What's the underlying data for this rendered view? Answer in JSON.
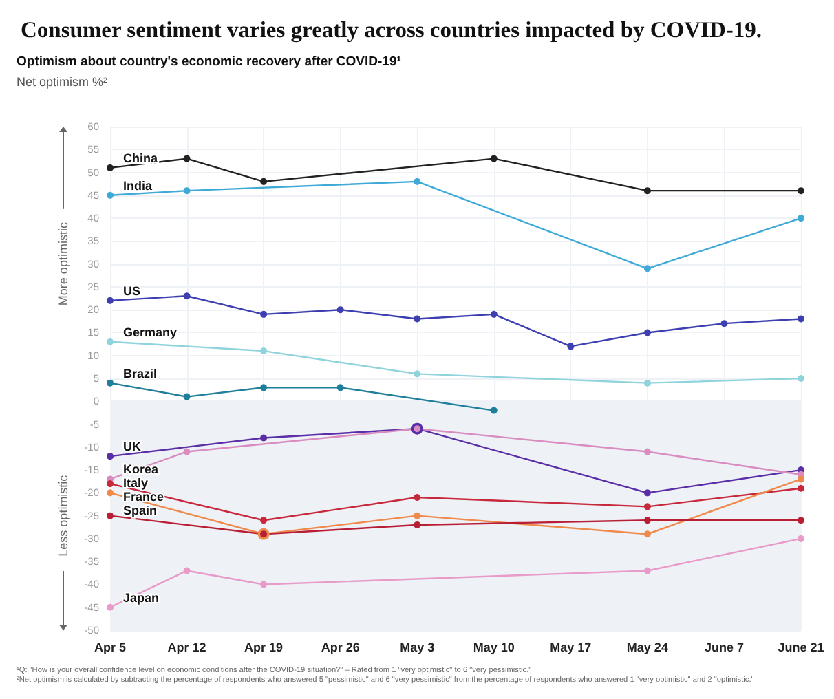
{
  "chart_data": {
    "type": "line",
    "title": "Consumer sentiment varies greatly across countries impacted by COVID-19.",
    "subtitle": "Optimism about country's economic recovery after COVID-19¹",
    "ylabel": "Net optimism %²",
    "categories": [
      "Apr 5",
      "Apr 12",
      "Apr 19",
      "Apr 26",
      "May 3",
      "May 10",
      "May 17",
      "May 24",
      "June 7",
      "June 21"
    ],
    "series": [
      {
        "name": "China",
        "color": "#222222",
        "values": [
          51,
          53,
          48,
          null,
          null,
          53,
          null,
          46,
          null,
          46
        ]
      },
      {
        "name": "India",
        "color": "#3fa9d8",
        "values": [
          45,
          46,
          null,
          null,
          48,
          null,
          null,
          29,
          null,
          40
        ]
      },
      {
        "name": "US",
        "color": "#3d3fb0",
        "values": [
          22,
          23,
          19,
          20,
          18,
          19,
          12,
          15,
          17,
          18
        ]
      },
      {
        "name": "Germany",
        "color": "#8fd3dc",
        "values": [
          13,
          null,
          11,
          null,
          6,
          null,
          null,
          4,
          null,
          5
        ]
      },
      {
        "name": "Brazil",
        "color": "#1f7f9a",
        "values": [
          4,
          1,
          3,
          3,
          null,
          -2,
          null,
          null,
          null,
          null
        ]
      },
      {
        "name": "UK",
        "color": "#5a2ea6",
        "values": [
          -12,
          null,
          -8,
          null,
          -6,
          null,
          null,
          -20,
          null,
          -15
        ]
      },
      {
        "name": "Korea",
        "color": "#d98cc0",
        "values": [
          -17,
          -11,
          null,
          null,
          -6,
          null,
          null,
          -11,
          null,
          -16
        ]
      },
      {
        "name": "Italy",
        "color": "#c8283c",
        "values": [
          -18,
          null,
          -26,
          null,
          -21,
          null,
          null,
          -23,
          null,
          -19
        ]
      },
      {
        "name": "France",
        "color": "#f08a4b",
        "values": [
          -20,
          null,
          -29,
          null,
          -25,
          null,
          null,
          -29,
          null,
          -17
        ]
      },
      {
        "name": "Spain",
        "color": "#b81f35",
        "values": [
          -25,
          null,
          -29,
          null,
          -27,
          null,
          null,
          -26,
          null,
          -26
        ]
      },
      {
        "name": "Japan",
        "color": "#e89ac8",
        "values": [
          -45,
          -37,
          -40,
          null,
          null,
          null,
          null,
          -37,
          null,
          -30
        ]
      }
    ],
    "ylim": [
      -50,
      60
    ],
    "yticks": [
      -50,
      -45,
      -40,
      -35,
      -30,
      -25,
      -20,
      -15,
      -10,
      -5,
      0,
      5,
      10,
      15,
      20,
      25,
      30,
      35,
      40,
      45,
      50,
      55,
      60
    ],
    "grid": true,
    "marker": "circle",
    "line_style": "solid",
    "bands": [
      {
        "axis": "y",
        "from": -50,
        "to": 0,
        "color": "#eef1f6"
      }
    ],
    "annotations": [
      "More optimistic",
      "Less optimistic",
      "¹Q: \"How is your overall confidence level on economic conditions after the COVID-19 situation?\" – Rated from 1 \"very optimistic\" to 6 \"very pessimistic.\"",
      "²Net optimism is calculated by subtracting the percentage of respondents who answered 5 \"pessimistic\" and 6 \"very pessimistic\" from the percentage of respondents who answered 1 \"very optimistic\" and 2 \"optimistic.\""
    ]
  }
}
